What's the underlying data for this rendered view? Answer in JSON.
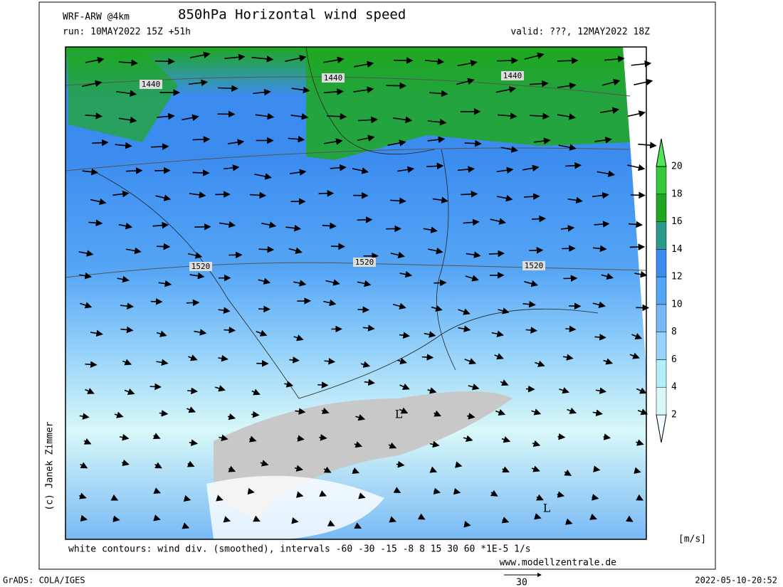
{
  "header": {
    "model": "WRF-ARW @4km",
    "title": "850hPa Horizontal wind speed",
    "run": "run: 10MAY2022 15Z +51h",
    "valid": "valid: ???, 12MAY2022 18Z"
  },
  "map": {
    "contour_labels": [
      "1440",
      "1440",
      "1440",
      "1520",
      "1520",
      "1520"
    ],
    "lows": [
      "L",
      "L"
    ]
  },
  "colorbar": {
    "ticks": [
      2,
      4,
      6,
      8,
      10,
      12,
      14,
      16,
      18,
      20
    ],
    "colors": [
      "#f0fcff",
      "#d8f8f8",
      "#b4f0fa",
      "#96d2fa",
      "#78b9f5",
      "#55a5f5",
      "#3c8cf0",
      "#2a9a8a",
      "#1fa81f",
      "#34c83a",
      "#50e65a"
    ],
    "unit": "[m/s]"
  },
  "footer": {
    "note": "white contours: wind div. (smoothed), intervals -60 -30 -15 -8 8 15 30 60 *1E-5 1/s",
    "website": "www.modellzentrale.de",
    "software": "GrADS: COLA/IGES",
    "timestamp": "2022-05-10-20:52",
    "copyright": "(c) Janek Zimmer",
    "vector_scale": "30"
  }
}
